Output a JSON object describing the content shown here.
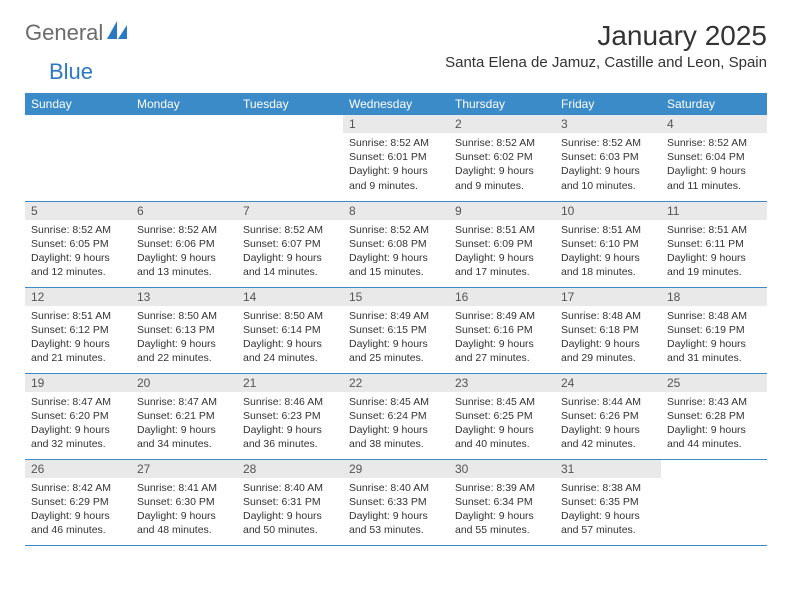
{
  "logo": {
    "text1": "General",
    "text2": "Blue"
  },
  "title": "January 2025",
  "location": "Santa Elena de Jamuz, Castille and Leon, Spain",
  "colors": {
    "header_bg": "#3b8bc9",
    "daynum_bg": "#e9e9e9",
    "logo_blue": "#2b79c2",
    "logo_gray": "#6b6b6b"
  },
  "day_headers": [
    "Sunday",
    "Monday",
    "Tuesday",
    "Wednesday",
    "Thursday",
    "Friday",
    "Saturday"
  ],
  "weeks": [
    [
      null,
      null,
      null,
      {
        "n": "1",
        "sr": "8:52 AM",
        "ss": "6:01 PM",
        "dl": "9 hours and 9 minutes."
      },
      {
        "n": "2",
        "sr": "8:52 AM",
        "ss": "6:02 PM",
        "dl": "9 hours and 9 minutes."
      },
      {
        "n": "3",
        "sr": "8:52 AM",
        "ss": "6:03 PM",
        "dl": "9 hours and 10 minutes."
      },
      {
        "n": "4",
        "sr": "8:52 AM",
        "ss": "6:04 PM",
        "dl": "9 hours and 11 minutes."
      }
    ],
    [
      {
        "n": "5",
        "sr": "8:52 AM",
        "ss": "6:05 PM",
        "dl": "9 hours and 12 minutes."
      },
      {
        "n": "6",
        "sr": "8:52 AM",
        "ss": "6:06 PM",
        "dl": "9 hours and 13 minutes."
      },
      {
        "n": "7",
        "sr": "8:52 AM",
        "ss": "6:07 PM",
        "dl": "9 hours and 14 minutes."
      },
      {
        "n": "8",
        "sr": "8:52 AM",
        "ss": "6:08 PM",
        "dl": "9 hours and 15 minutes."
      },
      {
        "n": "9",
        "sr": "8:51 AM",
        "ss": "6:09 PM",
        "dl": "9 hours and 17 minutes."
      },
      {
        "n": "10",
        "sr": "8:51 AM",
        "ss": "6:10 PM",
        "dl": "9 hours and 18 minutes."
      },
      {
        "n": "11",
        "sr": "8:51 AM",
        "ss": "6:11 PM",
        "dl": "9 hours and 19 minutes."
      }
    ],
    [
      {
        "n": "12",
        "sr": "8:51 AM",
        "ss": "6:12 PM",
        "dl": "9 hours and 21 minutes."
      },
      {
        "n": "13",
        "sr": "8:50 AM",
        "ss": "6:13 PM",
        "dl": "9 hours and 22 minutes."
      },
      {
        "n": "14",
        "sr": "8:50 AM",
        "ss": "6:14 PM",
        "dl": "9 hours and 24 minutes."
      },
      {
        "n": "15",
        "sr": "8:49 AM",
        "ss": "6:15 PM",
        "dl": "9 hours and 25 minutes."
      },
      {
        "n": "16",
        "sr": "8:49 AM",
        "ss": "6:16 PM",
        "dl": "9 hours and 27 minutes."
      },
      {
        "n": "17",
        "sr": "8:48 AM",
        "ss": "6:18 PM",
        "dl": "9 hours and 29 minutes."
      },
      {
        "n": "18",
        "sr": "8:48 AM",
        "ss": "6:19 PM",
        "dl": "9 hours and 31 minutes."
      }
    ],
    [
      {
        "n": "19",
        "sr": "8:47 AM",
        "ss": "6:20 PM",
        "dl": "9 hours and 32 minutes."
      },
      {
        "n": "20",
        "sr": "8:47 AM",
        "ss": "6:21 PM",
        "dl": "9 hours and 34 minutes."
      },
      {
        "n": "21",
        "sr": "8:46 AM",
        "ss": "6:23 PM",
        "dl": "9 hours and 36 minutes."
      },
      {
        "n": "22",
        "sr": "8:45 AM",
        "ss": "6:24 PM",
        "dl": "9 hours and 38 minutes."
      },
      {
        "n": "23",
        "sr": "8:45 AM",
        "ss": "6:25 PM",
        "dl": "9 hours and 40 minutes."
      },
      {
        "n": "24",
        "sr": "8:44 AM",
        "ss": "6:26 PM",
        "dl": "9 hours and 42 minutes."
      },
      {
        "n": "25",
        "sr": "8:43 AM",
        "ss": "6:28 PM",
        "dl": "9 hours and 44 minutes."
      }
    ],
    [
      {
        "n": "26",
        "sr": "8:42 AM",
        "ss": "6:29 PM",
        "dl": "9 hours and 46 minutes."
      },
      {
        "n": "27",
        "sr": "8:41 AM",
        "ss": "6:30 PM",
        "dl": "9 hours and 48 minutes."
      },
      {
        "n": "28",
        "sr": "8:40 AM",
        "ss": "6:31 PM",
        "dl": "9 hours and 50 minutes."
      },
      {
        "n": "29",
        "sr": "8:40 AM",
        "ss": "6:33 PM",
        "dl": "9 hours and 53 minutes."
      },
      {
        "n": "30",
        "sr": "8:39 AM",
        "ss": "6:34 PM",
        "dl": "9 hours and 55 minutes."
      },
      {
        "n": "31",
        "sr": "8:38 AM",
        "ss": "6:35 PM",
        "dl": "9 hours and 57 minutes."
      },
      null
    ]
  ],
  "labels": {
    "sunrise": "Sunrise:",
    "sunset": "Sunset:",
    "daylight": "Daylight:"
  }
}
